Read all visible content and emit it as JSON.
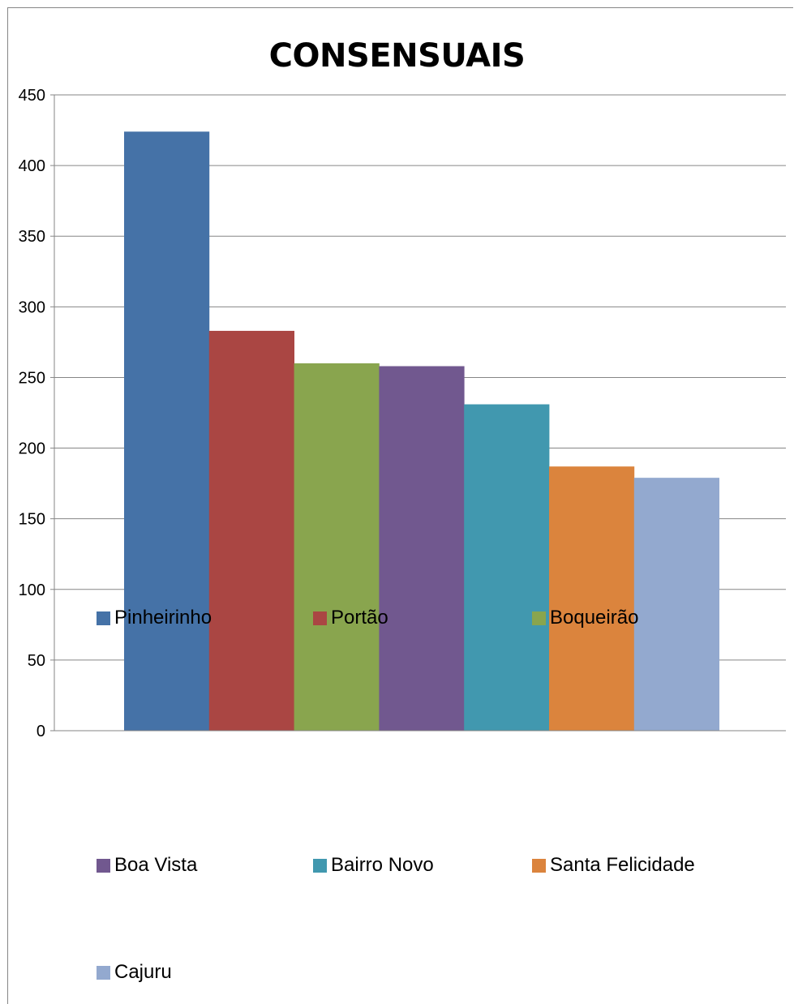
{
  "chart_data": {
    "type": "bar",
    "title": "CONSENSUAIS",
    "xlabel": "",
    "ylabel": "",
    "ylim": [
      0,
      450
    ],
    "yticks": [
      0,
      50,
      100,
      150,
      200,
      250,
      300,
      350,
      400,
      450
    ],
    "grid": true,
    "legend_position": "bottom",
    "series": [
      {
        "name": "Pinheirinho",
        "value": 424,
        "color": "#4572A7"
      },
      {
        "name": "Portão",
        "value": 283,
        "color": "#AA4643"
      },
      {
        "name": "Boqueirão",
        "value": 260,
        "color": "#89A54E"
      },
      {
        "name": "Boa Vista",
        "value": 258,
        "color": "#71588F"
      },
      {
        "name": "Bairro Novo",
        "value": 231,
        "color": "#4198AF"
      },
      {
        "name": "Santa Felicidade",
        "value": 187,
        "color": "#DB843D"
      },
      {
        "name": "Cajuru",
        "value": 179,
        "color": "#93A9CF"
      }
    ]
  }
}
